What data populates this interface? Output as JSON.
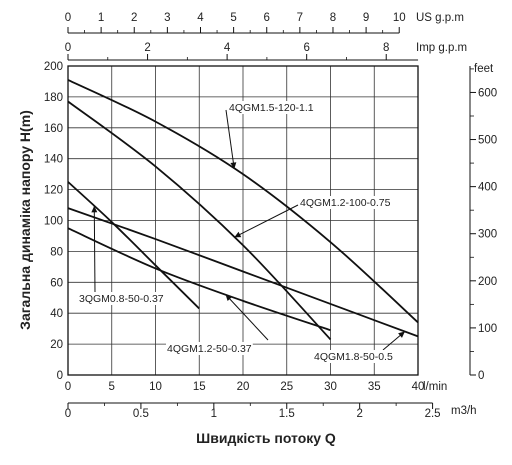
{
  "chart_data": {
    "type": "line",
    "xlabel": "Швидкість потоку Q",
    "ylabel": "Загальна динаміка напору H(m)",
    "x_unit": "l/min",
    "x_unit_m3h": "m3/h",
    "feet_unit": "feet",
    "us_unit": "US g.p.m",
    "imp_unit": "Imp g.p.m",
    "xlim": [
      0,
      40
    ],
    "ylim": [
      0,
      200
    ],
    "x_ticks": [
      "0",
      "5",
      "10",
      "15",
      "20",
      "25",
      "30",
      "35",
      "40"
    ],
    "y_ticks": [
      "0",
      "20",
      "40",
      "60",
      "80",
      "100",
      "120",
      "140",
      "160",
      "180",
      "200"
    ],
    "feet_ticks": [
      "0",
      "100",
      "200",
      "300",
      "400",
      "500",
      "600"
    ],
    "us_ticks": [
      "0",
      "1",
      "2",
      "3",
      "4",
      "5",
      "6",
      "7",
      "8",
      "9",
      "10"
    ],
    "imp_ticks": [
      "0",
      "2",
      "4",
      "6",
      "8"
    ],
    "m3h_ticks": [
      "0",
      "0.5",
      "1",
      "1.5",
      "2",
      "2.5"
    ],
    "grid": true,
    "series": [
      {
        "name": "4QGM1.5-120-1.1",
        "x": [
          0,
          10,
          20,
          30,
          40
        ],
        "y": [
          191,
          164,
          130,
          86,
          34
        ]
      },
      {
        "name": "4QGM1.2-100-0.75",
        "x": [
          0,
          10,
          20,
          30
        ],
        "y": [
          177,
          135,
          84,
          23
        ]
      },
      {
        "name": "3QGM0.8-50-0.37",
        "x": [
          0,
          5,
          10,
          15
        ],
        "y": [
          125,
          99,
          71,
          43
        ]
      },
      {
        "name": "4QGM1.2-50-0.37",
        "x": [
          0,
          10,
          20,
          30
        ],
        "y": [
          95,
          69,
          48,
          29
        ]
      },
      {
        "name": "4QGM1.8-50-0.5",
        "x": [
          0,
          10,
          20,
          30,
          40
        ],
        "y": [
          108,
          88,
          67,
          46,
          25
        ]
      }
    ]
  }
}
